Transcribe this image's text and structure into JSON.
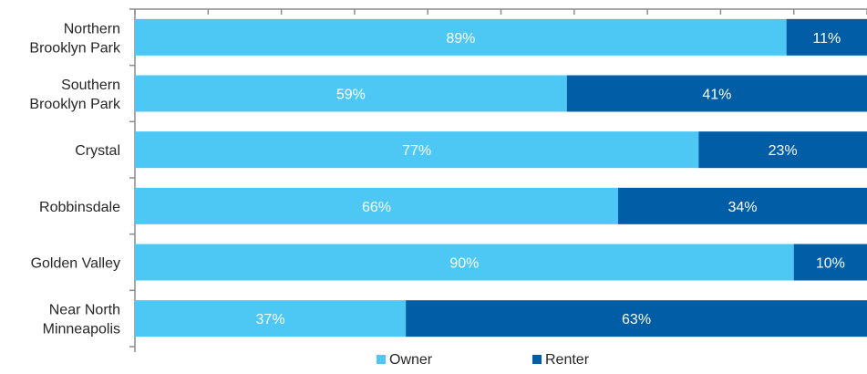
{
  "chart_data": {
    "type": "bar",
    "orientation": "horizontal",
    "stacked": true,
    "categories": [
      [
        "Northern",
        "Brooklyn Park"
      ],
      [
        "Southern",
        "Brooklyn Park"
      ],
      [
        "Crystal"
      ],
      [
        "Robbinsdale"
      ],
      [
        "Golden Valley"
      ],
      [
        "Near North",
        "Minneapolis"
      ]
    ],
    "series": [
      {
        "name": "Owner",
        "color": "#4DC8F4",
        "values": [
          89,
          59,
          77,
          66,
          90,
          37
        ],
        "labels": [
          "89%",
          "59%",
          "77%",
          "66%",
          "90%",
          "37%"
        ]
      },
      {
        "name": "Renter",
        "color": "#005DA6",
        "values": [
          11,
          41,
          23,
          34,
          10,
          63
        ],
        "labels": [
          "11%",
          "41%",
          "23%",
          "34%",
          "10%",
          "63%"
        ]
      }
    ],
    "xlim": [
      0,
      100
    ],
    "x_ticks_labeled": false,
    "grid": false,
    "legend_position": "bottom"
  }
}
